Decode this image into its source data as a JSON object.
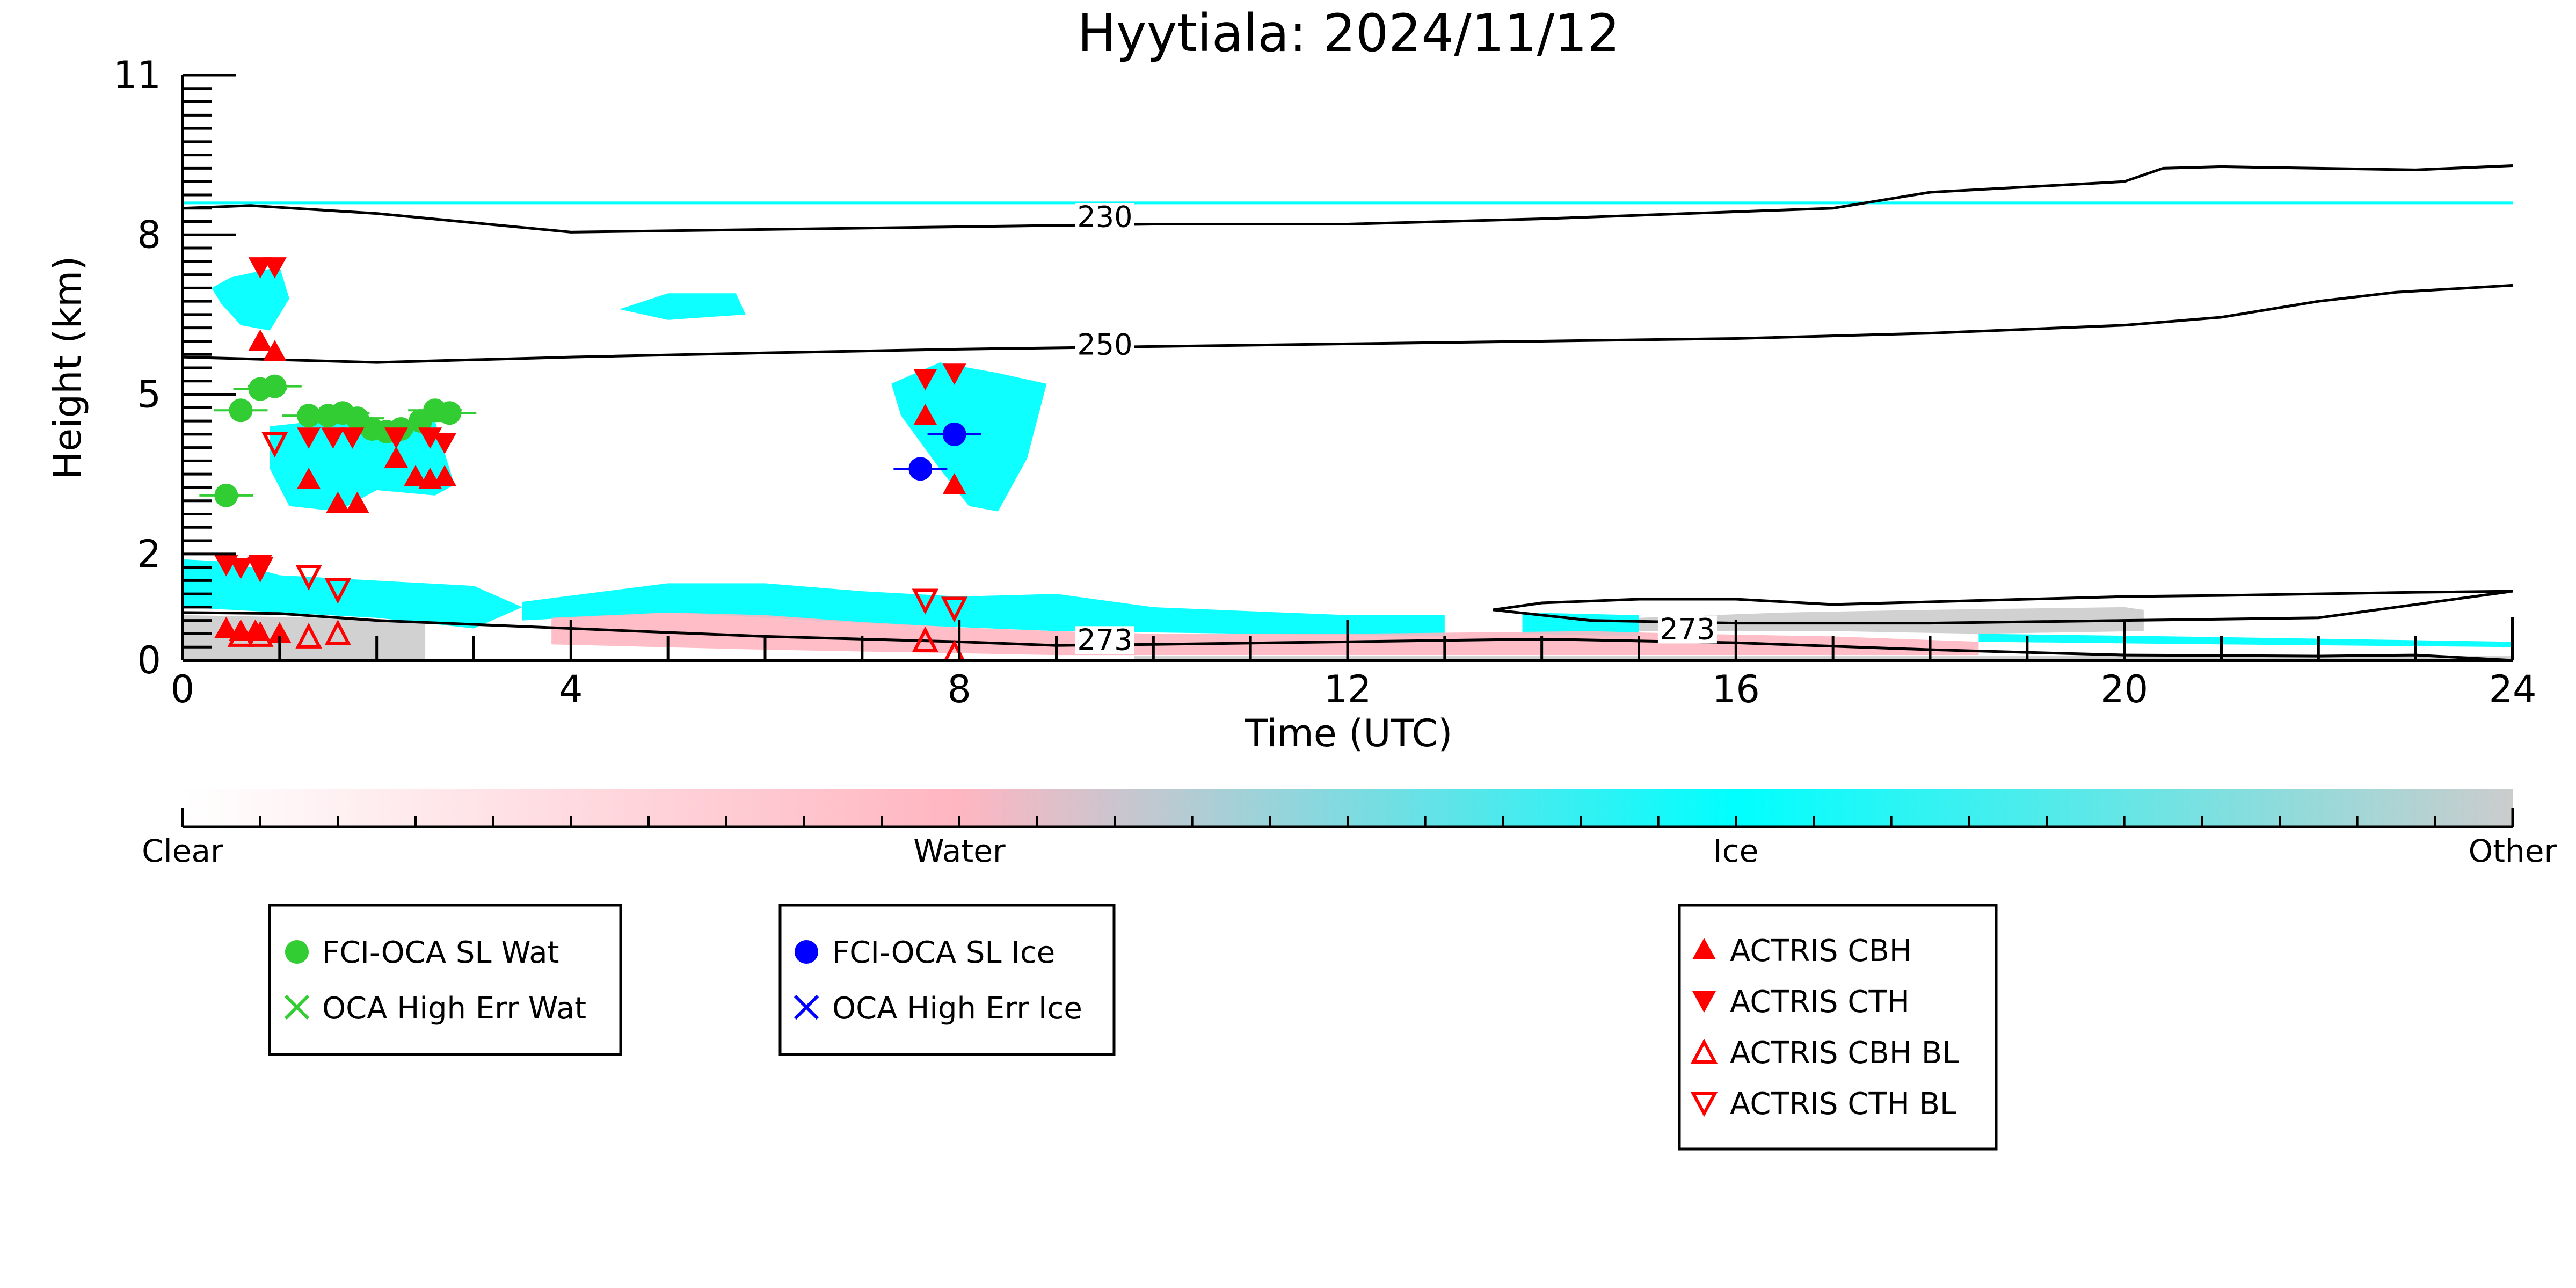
{
  "chart_data": {
    "type": "scatter",
    "title": "Hyytiala: 2024/11/12",
    "xlabel": "Time (UTC)",
    "ylabel": "Height (km)",
    "xlim": [
      0,
      24
    ],
    "ylim": [
      0,
      11
    ],
    "x_ticks": [
      "0",
      "4",
      "8",
      "12",
      "16",
      "20",
      "24"
    ],
    "y_ticks": [
      "0",
      "2",
      "5",
      "8",
      "11"
    ],
    "colors": {
      "clear": "#ffffff",
      "water": "#ffb6c1",
      "ice": "#00ffff",
      "other": "#cccccc",
      "fci_wat": "#32cd32",
      "fci_ice": "#0000ff",
      "actris": "#ff0000",
      "contour": "#000000"
    },
    "colorbar": {
      "labels": [
        "Clear",
        "Water",
        "Ice",
        "Other"
      ]
    },
    "tropopause_line_height_km": 8.6,
    "contours": [
      {
        "label": "230",
        "label_at": [
          9.5,
          8.25
        ],
        "points": [
          [
            0,
            8.5
          ],
          [
            0.7,
            8.55
          ],
          [
            2,
            8.4
          ],
          [
            4,
            8.05
          ],
          [
            6,
            8.1
          ],
          [
            8,
            8.15
          ],
          [
            10,
            8.2
          ],
          [
            12,
            8.2
          ],
          [
            14,
            8.3
          ],
          [
            17,
            8.5
          ],
          [
            18,
            8.8
          ],
          [
            19,
            8.9
          ],
          [
            20,
            9.0
          ],
          [
            20.4,
            9.25
          ],
          [
            21,
            9.28
          ],
          [
            22,
            9.25
          ],
          [
            23,
            9.22
          ],
          [
            24,
            9.3
          ]
        ]
      },
      {
        "label": "250",
        "label_at": [
          9.5,
          5.85
        ],
        "points": [
          [
            0,
            5.7
          ],
          [
            2,
            5.6
          ],
          [
            4,
            5.7
          ],
          [
            6,
            5.78
          ],
          [
            8,
            5.85
          ],
          [
            10,
            5.9
          ],
          [
            12,
            5.95
          ],
          [
            14,
            6.0
          ],
          [
            16,
            6.05
          ],
          [
            18,
            6.15
          ],
          [
            20,
            6.3
          ],
          [
            21,
            6.45
          ],
          [
            22,
            6.75
          ],
          [
            22.8,
            6.92
          ],
          [
            24,
            7.05
          ]
        ]
      },
      {
        "label": "273",
        "label_at": [
          9.5,
          0.3
        ],
        "points": [
          [
            0,
            0.9
          ],
          [
            1,
            0.88
          ],
          [
            2,
            0.75
          ],
          [
            4,
            0.6
          ],
          [
            6,
            0.45
          ],
          [
            8,
            0.35
          ],
          [
            9,
            0.28
          ],
          [
            10,
            0.3
          ],
          [
            12,
            0.35
          ],
          [
            14,
            0.4
          ],
          [
            16,
            0.33
          ],
          [
            18,
            0.2
          ],
          [
            20,
            0.1
          ],
          [
            22,
            0.08
          ],
          [
            23,
            0.1
          ],
          [
            24,
            0.0
          ]
        ]
      },
      {
        "label": "273",
        "label_at": [
          15.5,
          0.5
        ],
        "points": [
          [
            13.5,
            0.95
          ],
          [
            14,
            1.08
          ],
          [
            15,
            1.15
          ],
          [
            16,
            1.15
          ],
          [
            17,
            1.05
          ],
          [
            18,
            1.1
          ],
          [
            19,
            1.15
          ],
          [
            20,
            1.2
          ],
          [
            21,
            1.22
          ],
          [
            22,
            1.25
          ],
          [
            23,
            1.28
          ],
          [
            24,
            1.3
          ],
          [
            24,
            1.3
          ],
          [
            22,
            0.8
          ],
          [
            20,
            0.75
          ],
          [
            18,
            0.7
          ],
          [
            16,
            0.7
          ],
          [
            14.5,
            0.75
          ],
          [
            13.5,
            0.95
          ]
        ],
        "closed": true
      }
    ],
    "cloud_regions": [
      {
        "phase": "ice",
        "points": [
          [
            0.3,
            7.0
          ],
          [
            0.5,
            7.2
          ],
          [
            1.0,
            7.4
          ],
          [
            1.1,
            6.8
          ],
          [
            0.9,
            6.2
          ],
          [
            0.6,
            6.3
          ],
          [
            0.4,
            6.7
          ]
        ]
      },
      {
        "phase": "ice",
        "points": [
          [
            0.9,
            4.4
          ],
          [
            1.4,
            4.5
          ],
          [
            2.0,
            4.4
          ],
          [
            2.6,
            4.5
          ],
          [
            2.8,
            3.3
          ],
          [
            2.6,
            3.1
          ],
          [
            2.0,
            3.2
          ],
          [
            1.6,
            2.8
          ],
          [
            1.1,
            2.9
          ],
          [
            0.9,
            3.6
          ]
        ]
      },
      {
        "phase": "ice",
        "points": [
          [
            7.3,
            5.2
          ],
          [
            7.8,
            5.6
          ],
          [
            8.4,
            5.4
          ],
          [
            8.9,
            5.2
          ],
          [
            8.7,
            3.8
          ],
          [
            8.4,
            2.8
          ],
          [
            8.1,
            2.9
          ],
          [
            7.8,
            3.6
          ],
          [
            7.4,
            4.6
          ]
        ]
      },
      {
        "phase": "ice",
        "points": [
          [
            4.5,
            6.6
          ],
          [
            5.0,
            6.9
          ],
          [
            5.7,
            6.9
          ],
          [
            5.8,
            6.5
          ],
          [
            5.0,
            6.4
          ]
        ]
      },
      {
        "phase": "ice",
        "points": [
          [
            0,
            1.9
          ],
          [
            0.5,
            1.85
          ],
          [
            1.0,
            1.6
          ],
          [
            1.5,
            1.55
          ],
          [
            2.0,
            1.5
          ],
          [
            3.0,
            1.4
          ],
          [
            3.5,
            1.0
          ],
          [
            3.0,
            0.6
          ],
          [
            2.0,
            0.8
          ],
          [
            1.0,
            0.9
          ],
          [
            0,
            1.0
          ]
        ]
      },
      {
        "phase": "ice",
        "points": [
          [
            3.5,
            1.1
          ],
          [
            5.0,
            1.45
          ],
          [
            6.0,
            1.45
          ],
          [
            7.0,
            1.3
          ],
          [
            8.0,
            1.2
          ],
          [
            9.0,
            1.25
          ],
          [
            10.0,
            1.0
          ],
          [
            12.0,
            0.85
          ],
          [
            13.0,
            0.85
          ],
          [
            13.0,
            0.45
          ],
          [
            11.0,
            0.5
          ],
          [
            9.0,
            0.55
          ],
          [
            7.0,
            0.7
          ],
          [
            5.0,
            0.9
          ],
          [
            3.5,
            0.75
          ]
        ]
      },
      {
        "phase": "ice",
        "points": [
          [
            13.8,
            0.9
          ],
          [
            15.0,
            0.85
          ],
          [
            15.0,
            0.45
          ],
          [
            13.8,
            0.5
          ]
        ]
      },
      {
        "phase": "ice",
        "points": [
          [
            18.5,
            0.5
          ],
          [
            20.5,
            0.45
          ],
          [
            24.0,
            0.35
          ],
          [
            24.0,
            0.25
          ],
          [
            21.0,
            0.3
          ],
          [
            18.5,
            0.35
          ]
        ]
      },
      {
        "phase": "water",
        "points": [
          [
            3.8,
            0.8
          ],
          [
            5.0,
            0.9
          ],
          [
            6.0,
            0.85
          ],
          [
            7.0,
            0.72
          ],
          [
            8.0,
            0.62
          ],
          [
            9.0,
            0.55
          ],
          [
            10.0,
            0.5
          ],
          [
            12.0,
            0.5
          ],
          [
            14.5,
            0.55
          ],
          [
            15.5,
            0.5
          ],
          [
            17.0,
            0.45
          ],
          [
            18.5,
            0.35
          ],
          [
            18.5,
            0.1
          ],
          [
            15.0,
            0.1
          ],
          [
            12.0,
            0.1
          ],
          [
            9.0,
            0.1
          ],
          [
            6.0,
            0.2
          ],
          [
            3.8,
            0.3
          ]
        ]
      },
      {
        "phase": "other",
        "points": [
          [
            0,
            0.85
          ],
          [
            1.5,
            0.8
          ],
          [
            2.5,
            0.7
          ],
          [
            2.5,
            0.0
          ],
          [
            0,
            0.0
          ]
        ]
      },
      {
        "phase": "other",
        "points": [
          [
            15.0,
            0.8
          ],
          [
            16.5,
            0.9
          ],
          [
            18.0,
            0.95
          ],
          [
            20.0,
            1.0
          ],
          [
            20.2,
            0.95
          ],
          [
            20.2,
            0.55
          ],
          [
            18.5,
            0.5
          ],
          [
            17.0,
            0.55
          ],
          [
            15.0,
            0.55
          ]
        ]
      },
      {
        "phase": "other",
        "points": [
          [
            9.8,
            0.0
          ],
          [
            24,
            0.0
          ],
          [
            24,
            0.08
          ],
          [
            9.8,
            0.08
          ]
        ]
      }
    ],
    "legends": [
      {
        "position": "left",
        "entries": [
          {
            "label": "FCI-OCA SL Wat",
            "marker": "circle",
            "color": "#32cd32"
          },
          {
            "label": "OCA High Err Wat",
            "marker": "x",
            "color": "#32cd32"
          }
        ]
      },
      {
        "position": "center-left",
        "entries": [
          {
            "label": "FCI-OCA SL Ice",
            "marker": "circle",
            "color": "#0000ff"
          },
          {
            "label": "OCA High Err Ice",
            "marker": "x",
            "color": "#0000ff"
          }
        ]
      },
      {
        "position": "center-right",
        "entries": [
          {
            "label": "ACTRIS CBH",
            "marker": "triangle-up",
            "color": "#ff0000"
          },
          {
            "label": "ACTRIS CTH",
            "marker": "triangle-down",
            "color": "#ff0000"
          },
          {
            "label": "ACTRIS CBH BL",
            "marker": "triangle-up-open",
            "color": "#ff0000"
          },
          {
            "label": "ACTRIS CTH BL",
            "marker": "triangle-down-open",
            "color": "#ff0000"
          }
        ]
      }
    ],
    "series": [
      {
        "name": "FCI-OCA SL Wat",
        "marker": "circle",
        "color": "#32cd32",
        "points": [
          [
            0.45,
            3.1
          ],
          [
            0.6,
            4.7
          ],
          [
            0.8,
            5.1
          ],
          [
            0.95,
            5.15
          ],
          [
            1.3,
            4.6
          ],
          [
            1.5,
            4.6
          ],
          [
            1.65,
            4.65
          ],
          [
            1.8,
            4.55
          ],
          [
            1.95,
            4.35
          ],
          [
            2.1,
            4.3
          ],
          [
            2.25,
            4.35
          ],
          [
            2.45,
            4.5
          ],
          [
            2.6,
            4.7
          ],
          [
            2.75,
            4.65
          ]
        ]
      },
      {
        "name": "FCI-OCA SL Ice",
        "marker": "circle",
        "color": "#0000ff",
        "points": [
          [
            7.6,
            3.6
          ],
          [
            7.95,
            4.25
          ]
        ]
      },
      {
        "name": "ACTRIS CBH",
        "marker": "triangle-up",
        "color": "#ff0000",
        "points": [
          [
            0.8,
            6.0
          ],
          [
            0.95,
            5.8
          ],
          [
            1.3,
            3.4
          ],
          [
            1.6,
            2.95
          ],
          [
            1.8,
            2.95
          ],
          [
            2.2,
            3.8
          ],
          [
            2.4,
            3.45
          ],
          [
            2.55,
            3.4
          ],
          [
            2.7,
            3.45
          ],
          [
            7.65,
            4.6
          ],
          [
            7.95,
            3.3
          ],
          [
            0.45,
            0.6
          ],
          [
            0.6,
            0.55
          ],
          [
            0.75,
            0.55
          ],
          [
            1.0,
            0.5
          ]
        ]
      },
      {
        "name": "ACTRIS CTH",
        "marker": "triangle-down",
        "color": "#ff0000",
        "points": [
          [
            0.8,
            7.4
          ],
          [
            0.95,
            7.4
          ],
          [
            1.3,
            4.2
          ],
          [
            1.55,
            4.2
          ],
          [
            1.75,
            4.2
          ],
          [
            2.2,
            4.2
          ],
          [
            2.55,
            4.2
          ],
          [
            2.7,
            4.1
          ],
          [
            7.65,
            5.3
          ],
          [
            7.95,
            5.4
          ],
          [
            0.45,
            1.8
          ],
          [
            0.6,
            1.75
          ],
          [
            0.8,
            1.8
          ]
        ]
      },
      {
        "name": "ACTRIS CBH BL",
        "marker": "triangle-up-open",
        "color": "#ff0000",
        "points": [
          [
            0.6,
            0.45
          ],
          [
            0.8,
            0.45
          ],
          [
            1.3,
            0.42
          ],
          [
            1.6,
            0.48
          ],
          [
            7.65,
            0.35
          ],
          [
            7.95,
            0.1
          ]
        ]
      },
      {
        "name": "ACTRIS CTH BL",
        "marker": "triangle-down-open",
        "color": "#ff0000",
        "points": [
          [
            0.95,
            4.1
          ],
          [
            0.8,
            1.75
          ],
          [
            1.3,
            1.6
          ],
          [
            1.6,
            1.35
          ],
          [
            7.65,
            1.15
          ],
          [
            7.95,
            1.0
          ]
        ]
      }
    ]
  }
}
